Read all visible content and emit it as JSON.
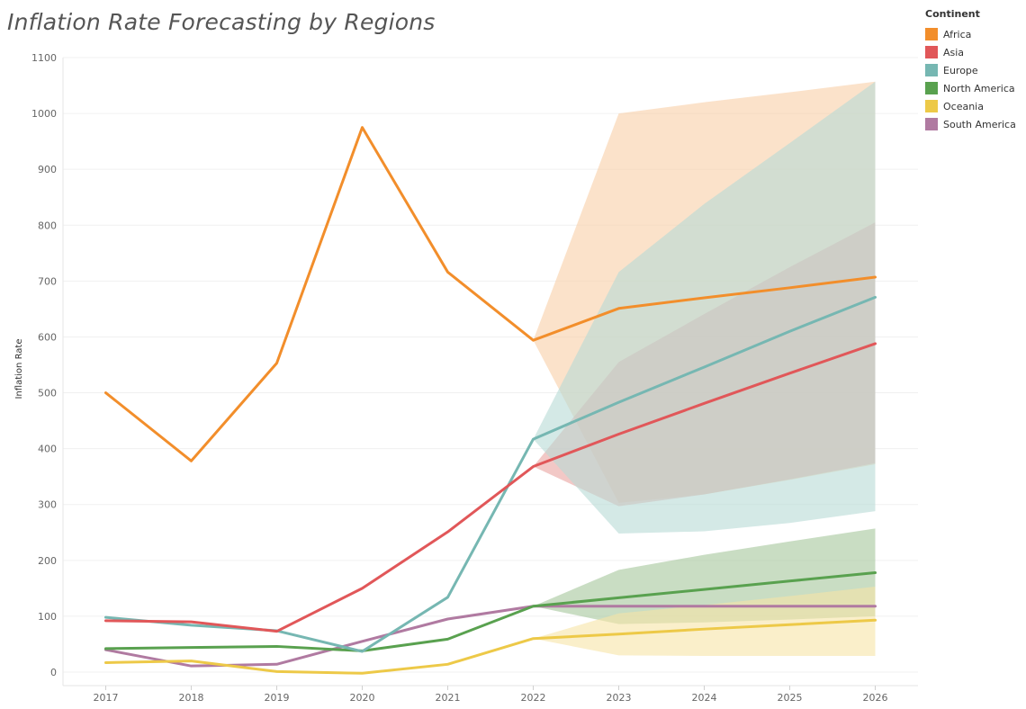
{
  "chart_data": {
    "type": "line",
    "title": "Inflation Rate Forecasting by Regions",
    "ylabel": "Inflation Rate",
    "xlabel": "",
    "x": [
      2017,
      2018,
      2019,
      2020,
      2021,
      2022,
      2023,
      2024,
      2025,
      2026
    ],
    "ylim": [
      0,
      1100
    ],
    "yticks": [
      0,
      100,
      200,
      300,
      400,
      500,
      600,
      700,
      800,
      900,
      1000,
      1100
    ],
    "grid": true,
    "legend_title": "Continent",
    "legend_placement": "top-right",
    "forecast_start": 2022,
    "series": [
      {
        "name": "Africa",
        "color": "#F28E2B",
        "band_color": "#F9CFA6",
        "values": [
          500,
          378,
          553,
          975,
          716,
          594,
          651,
          670,
          688,
          707
        ],
        "band": {
          "x": [
            2022,
            2023,
            2024,
            2025,
            2026
          ],
          "upper": [
            594,
            1000,
            1020,
            1038,
            1057
          ],
          "lower": [
            594,
            303,
            318,
            344,
            372
          ]
        }
      },
      {
        "name": "Asia",
        "color": "#E15759",
        "band_color": "#E9A3A0",
        "values": [
          92,
          90,
          73,
          150,
          251,
          368,
          426,
          481,
          535,
          588
        ],
        "band": {
          "x": [
            2022,
            2023,
            2024,
            2025,
            2026
          ],
          "upper": [
            368,
            555,
            641,
            725,
            805
          ],
          "lower": [
            368,
            297,
            318,
            345,
            374
          ]
        }
      },
      {
        "name": "Europe",
        "color": "#76B7B2",
        "band_color": "#B7DAD6",
        "values": [
          98,
          84,
          74,
          37,
          134,
          417,
          483,
          546,
          610,
          671
        ],
        "band": {
          "x": [
            2022,
            2023,
            2024,
            2025,
            2026
          ],
          "upper": [
            417,
            716,
            838,
            947,
            1057
          ],
          "lower": [
            417,
            248,
            252,
            267,
            288
          ]
        }
      },
      {
        "name": "North America",
        "color": "#59A14F",
        "band_color": "#A5C69B",
        "values": [
          42,
          44,
          46,
          38,
          59,
          118,
          133,
          148,
          163,
          178
        ],
        "band": {
          "x": [
            2022,
            2023,
            2024,
            2025,
            2026
          ],
          "upper": [
            118,
            183,
            210,
            234,
            257
          ],
          "lower": [
            118,
            86,
            89,
            94,
            100
          ]
        }
      },
      {
        "name": "Oceania",
        "color": "#EDC948",
        "band_color": "#F6E4A6",
        "values": [
          17,
          20,
          1,
          -2,
          14,
          60,
          68,
          77,
          85,
          93
        ],
        "band": {
          "x": [
            2022,
            2023,
            2024,
            2025,
            2026
          ],
          "upper": [
            60,
            105,
            120,
            136,
            153
          ],
          "lower": [
            60,
            30,
            29,
            29,
            29
          ]
        }
      },
      {
        "name": "South America",
        "color": "#B07AA1",
        "band_color": "#D6B9CC",
        "values": [
          40,
          11,
          14,
          55,
          95,
          118,
          118,
          118,
          118,
          118
        ],
        "band": null
      }
    ]
  }
}
